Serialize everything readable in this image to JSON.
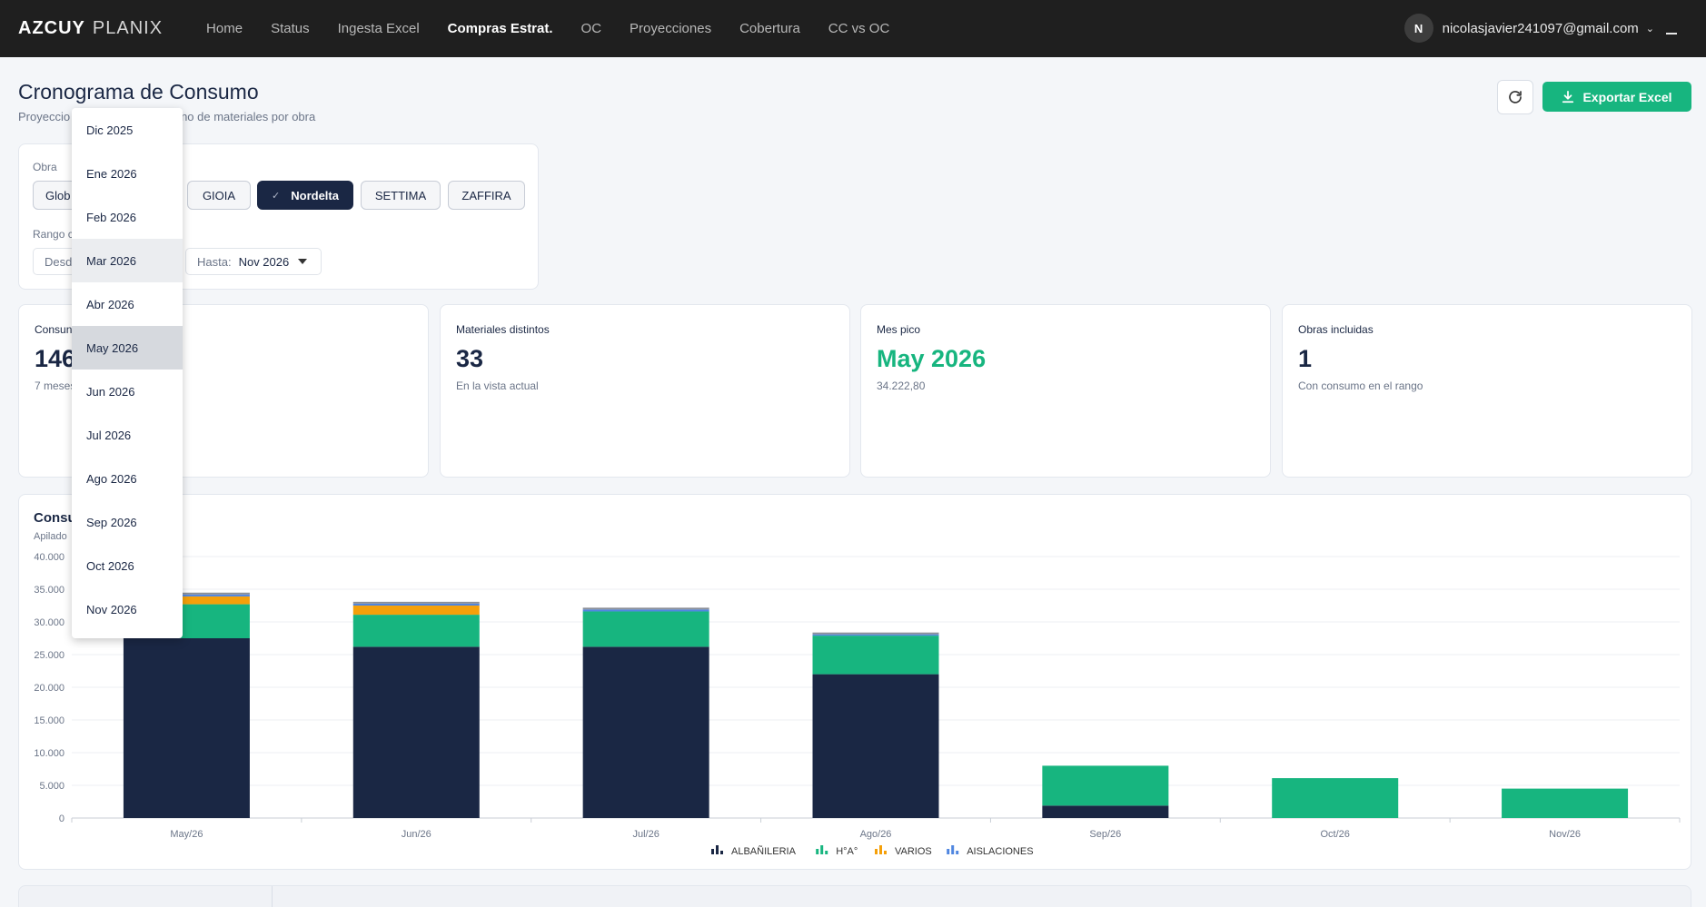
{
  "nav": {
    "brand_bold": "AZCUY",
    "brand_light": "PLANIX",
    "links": [
      "Home",
      "Status",
      "Ingesta Excel",
      "Compras Estrat.",
      "OC",
      "Proyecciones",
      "Cobertura",
      "CC vs OC"
    ],
    "active": "Compras Estrat.",
    "user_initial": "N",
    "user_email": "nicolasjavier241097@gmail.com"
  },
  "header": {
    "title": "Cronograma de Consumo",
    "subtitle_visible_start": "Proyeccio",
    "subtitle_visible_end": "no de materiales por obra",
    "export_label": "Exportar Excel"
  },
  "filters": {
    "obra_label": "Obra",
    "chips": [
      {
        "label": "Glob",
        "selected": false
      },
      {
        "label": "GIOIA",
        "selected": false
      },
      {
        "label": "Nordelta",
        "selected": true
      },
      {
        "label": "SETTIMA",
        "selected": false
      },
      {
        "label": "ZAFFIRA",
        "selected": false
      }
    ],
    "range_label": "Rango c",
    "desde_label": "Desd",
    "hasta_label": "Hasta:",
    "hasta_value": "Nov 2026"
  },
  "kpis": [
    {
      "title": "Consun",
      "value": "146",
      "sub": "7 meses"
    },
    {
      "title": "Materiales distintos",
      "value": "33",
      "sub": "En la vista actual"
    },
    {
      "title": "Mes pico",
      "value": "May 2026",
      "sub": "34.222,80",
      "accent": "#17b57f"
    },
    {
      "title": "Obras incluidas",
      "value": "1",
      "sub": "Con consumo en el rango"
    }
  ],
  "chart_card": {
    "title": "Consu",
    "subtitle": "Apilado"
  },
  "chart_data": {
    "type": "bar",
    "stacked": true,
    "categories": [
      "May/26",
      "Jun/26",
      "Jul/26",
      "Ago/26",
      "Sep/26",
      "Oct/26",
      "Nov/26"
    ],
    "series": [
      {
        "name": "ALBAÑILERIA",
        "color": "#1a2744",
        "values": [
          27500,
          26200,
          26200,
          22000,
          1900,
          0,
          0
        ]
      },
      {
        "name": "H°A°",
        "color": "#17b57f",
        "values": [
          5200,
          4900,
          5400,
          5900,
          6100,
          6100,
          4500
        ]
      },
      {
        "name": "VARIOS",
        "color": "#f5a00a",
        "values": [
          1200,
          1400,
          0,
          0,
          0,
          0,
          0
        ]
      },
      {
        "name": "AISLACIONES",
        "color": "#4f86e0",
        "values": [
          300,
          300,
          300,
          200,
          0,
          0,
          0
        ]
      }
    ],
    "extra_band_color": "#8a8f98",
    "ylim": [
      0,
      40000
    ],
    "yticks": [
      "0",
      "5.000",
      "10.000",
      "15.000",
      "20.000",
      "25.000",
      "30.000",
      "35.000",
      "40.000"
    ],
    "grid": true,
    "legend_position": "bottom"
  },
  "month_menu": {
    "items": [
      "Dic 2025",
      "Ene 2026",
      "Feb 2026",
      "Mar 2026",
      "Abr 2026",
      "May 2026",
      "Jun 2026",
      "Jul 2026",
      "Ago 2026",
      "Sep 2026",
      "Oct 2026",
      "Nov 2026"
    ],
    "hovered": "Mar 2026",
    "selected": "May 2026"
  }
}
